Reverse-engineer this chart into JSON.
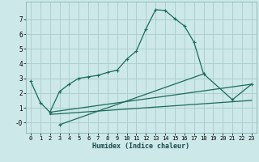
{
  "xlabel": "Humidex (Indice chaleur)",
  "bg_color": "#cce8e8",
  "grid_color": "#aacccc",
  "line_color": "#1a6b5a",
  "xlim": [
    -0.5,
    23.5
  ],
  "ylim": [
    -0.7,
    8.2
  ],
  "xticks": [
    0,
    1,
    2,
    3,
    4,
    5,
    6,
    7,
    8,
    9,
    10,
    11,
    12,
    13,
    14,
    15,
    16,
    17,
    18,
    19,
    20,
    21,
    22,
    23
  ],
  "yticks": [
    0,
    1,
    2,
    3,
    4,
    5,
    6,
    7
  ],
  "ytick_labels": [
    "-0",
    "1",
    "2",
    "3",
    "4",
    "5",
    "6",
    "7"
  ],
  "main_curve_x": [
    0,
    1,
    2,
    3,
    4,
    5,
    6,
    7,
    8,
    9,
    10,
    11,
    12,
    13,
    14,
    15,
    16,
    17,
    18
  ],
  "main_curve_y": [
    2.8,
    1.35,
    0.7,
    2.1,
    2.6,
    3.0,
    3.1,
    3.2,
    3.4,
    3.55,
    4.3,
    4.85,
    6.35,
    7.65,
    7.6,
    7.05,
    6.55,
    5.45,
    3.3
  ],
  "line2_x": [
    2,
    23
  ],
  "line2_y": [
    0.7,
    2.6
  ],
  "line3_x": [
    2,
    23
  ],
  "line3_y": [
    0.55,
    1.5
  ],
  "line4_x": [
    3,
    18,
    21,
    23
  ],
  "line4_y": [
    -0.15,
    3.3,
    1.55,
    2.6
  ]
}
